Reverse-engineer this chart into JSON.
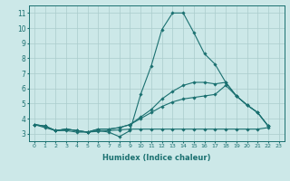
{
  "xlabel": "Humidex (Indice chaleur)",
  "bg_color": "#cce8e8",
  "grid_color": "#aacccc",
  "line_color": "#1a7070",
  "series": [
    [
      3.6,
      3.5,
      3.2,
      3.3,
      3.2,
      3.1,
      3.2,
      3.1,
      2.8,
      3.2,
      5.6,
      7.5,
      9.9,
      11.0,
      11.0,
      9.7,
      8.3,
      7.6,
      6.4,
      5.5,
      4.9,
      4.4,
      3.5
    ],
    [
      3.6,
      3.4,
      3.2,
      3.2,
      3.1,
      3.1,
      3.15,
      3.2,
      3.25,
      3.3,
      3.3,
      3.3,
      3.3,
      3.3,
      3.3,
      3.3,
      3.3,
      3.3,
      3.3,
      3.3,
      3.3,
      3.3,
      3.4
    ],
    [
      3.6,
      3.5,
      3.2,
      3.3,
      3.2,
      3.1,
      3.3,
      3.3,
      3.4,
      3.6,
      4.0,
      4.4,
      4.8,
      5.1,
      5.3,
      5.4,
      5.5,
      5.6,
      6.2,
      5.5,
      4.9,
      4.4,
      3.5
    ],
    [
      3.6,
      3.5,
      3.2,
      3.3,
      3.2,
      3.1,
      3.3,
      3.3,
      3.4,
      3.6,
      4.1,
      4.6,
      5.3,
      5.8,
      6.2,
      6.4,
      6.4,
      6.3,
      6.4,
      5.5,
      4.9,
      4.4,
      3.5
    ]
  ],
  "xlim": [
    -0.5,
    23.5
  ],
  "ylim": [
    2.5,
    11.5
  ],
  "yticks": [
    3,
    4,
    5,
    6,
    7,
    8,
    9,
    10,
    11
  ],
  "xticks": [
    0,
    1,
    2,
    3,
    4,
    5,
    6,
    7,
    8,
    9,
    10,
    11,
    12,
    13,
    14,
    15,
    16,
    17,
    18,
    19,
    20,
    21,
    22,
    23
  ],
  "figsize": [
    3.2,
    2.0
  ],
  "dpi": 100
}
